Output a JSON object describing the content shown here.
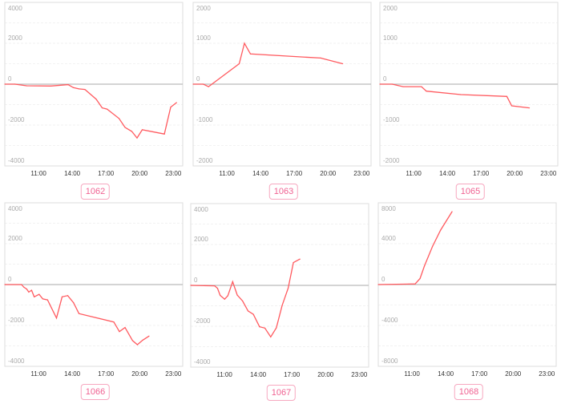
{
  "style": {
    "line_color": "#ff5a5f",
    "zero_line_color": "#bbbbbb",
    "grid_color": "#eeeeee",
    "frame_color": "#dddddd",
    "badge_color": "#f06292"
  },
  "chart_data": [
    {
      "type": "line",
      "label": "1062",
      "xlabel": "",
      "ylabel": "",
      "xlim": [
        "08:00",
        "23:50"
      ],
      "ylim": [
        -4000,
        4000
      ],
      "yticks": [
        -4000,
        -2000,
        0,
        2000,
        4000
      ],
      "xticks": [
        "11:00",
        "14:00",
        "17:00",
        "20:00",
        "23:00"
      ],
      "grid": true,
      "x": [
        "08:00",
        "08:54",
        "09:57",
        "12:06",
        "13:38",
        "14:06",
        "14:36",
        "15:08",
        "16:08",
        "16:40",
        "17:06",
        "18:10",
        "18:42",
        "19:18",
        "19:46",
        "20:14",
        "22:12",
        "22:46",
        "23:17"
      ],
      "y": [
        0,
        0,
        -80,
        -90,
        -25,
        -170,
        -230,
        -260,
        -735,
        -1160,
        -1220,
        -1680,
        -2115,
        -2310,
        -2630,
        -2230,
        -2440,
        -1120,
        -900
      ]
    },
    {
      "type": "line",
      "label": "1063",
      "xlabel": "",
      "ylabel": "",
      "xlim": [
        "08:00",
        "23:50"
      ],
      "ylim": [
        -2000,
        2000
      ],
      "yticks": [
        -2000,
        -1000,
        0,
        1000,
        2000
      ],
      "xticks": [
        "11:00",
        "14:00",
        "17:00",
        "20:00",
        "23:00"
      ],
      "grid": true,
      "x": [
        "08:00",
        "08:54",
        "09:22",
        "12:06",
        "12:34",
        "13:06",
        "19:21",
        "21:18"
      ],
      "y": [
        0,
        0,
        -60,
        500,
        1000,
        740,
        640,
        500
      ]
    },
    {
      "type": "line",
      "label": "1065",
      "xlabel": "",
      "ylabel": "",
      "xlim": [
        "08:00",
        "23:50"
      ],
      "ylim": [
        -2000,
        2000
      ],
      "yticks": [
        -2000,
        -1000,
        0,
        1000,
        2000
      ],
      "xticks": [
        "11:00",
        "14:00",
        "17:00",
        "20:00",
        "23:00"
      ],
      "grid": true,
      "x": [
        "08:00",
        "09:06",
        "10:04",
        "11:42",
        "12:08",
        "15:12",
        "19:18",
        "19:44",
        "21:18"
      ],
      "y": [
        0,
        0,
        -60,
        -60,
        -170,
        -255,
        -300,
        -530,
        -580
      ]
    },
    {
      "type": "line",
      "label": "1066",
      "xlabel": "",
      "ylabel": "",
      "xlim": [
        "08:00",
        "23:50"
      ],
      "ylim": [
        -4000,
        4000
      ],
      "yticks": [
        -4000,
        -2000,
        0,
        2000,
        4000
      ],
      "xticks": [
        "11:00",
        "14:00",
        "17:00",
        "20:00",
        "23:00"
      ],
      "grid": true,
      "x": [
        "08:00",
        "09:29",
        "09:42",
        "09:57",
        "10:08",
        "10:23",
        "10:37",
        "11:03",
        "11:23",
        "11:48",
        "12:36",
        "13:06",
        "13:36",
        "14:07",
        "14:36",
        "17:42",
        "18:12",
        "18:42",
        "19:22",
        "19:48",
        "20:16",
        "20:50"
      ],
      "y": [
        0,
        0,
        -130,
        -220,
        -370,
        -280,
        -600,
        -480,
        -700,
        -750,
        -1640,
        -600,
        -540,
        -890,
        -1420,
        -1830,
        -2300,
        -2100,
        -2740,
        -2940,
        -2720,
        -2520
      ]
    },
    {
      "type": "line",
      "label": "1067",
      "xlabel": "",
      "ylabel": "",
      "xlim": [
        "08:00",
        "23:50"
      ],
      "ylim": [
        -4000,
        4000
      ],
      "yticks": [
        -4000,
        -2000,
        0,
        2000,
        4000
      ],
      "xticks": [
        "11:00",
        "14:00",
        "17:00",
        "20:00",
        "23:00"
      ],
      "grid": true,
      "x": [
        "08:00",
        "10:08",
        "10:23",
        "10:37",
        "11:01",
        "11:18",
        "11:44",
        "12:08",
        "12:37",
        "13:06",
        "13:34",
        "14:07",
        "14:36",
        "15:07",
        "15:37",
        "16:08",
        "16:40",
        "17:08",
        "17:43"
      ],
      "y": [
        0,
        -25,
        -140,
        -490,
        -675,
        -505,
        180,
        -470,
        -765,
        -1250,
        -1415,
        -2025,
        -2090,
        -2520,
        -2080,
        -990,
        -145,
        1115,
        1285
      ]
    },
    {
      "type": "line",
      "label": "1068",
      "xlabel": "",
      "ylabel": "",
      "xlim": [
        "08:00",
        "23:50"
      ],
      "ylim": [
        -8000,
        8000
      ],
      "yticks": [
        -8000,
        -4000,
        0,
        4000,
        8000
      ],
      "xticks": [
        "11:00",
        "14:00",
        "17:00",
        "20:00",
        "23:00"
      ],
      "grid": true,
      "x": [
        "08:00",
        "11:17",
        "11:43",
        "12:07",
        "12:50",
        "13:33",
        "14:34"
      ],
      "y": [
        0,
        60,
        590,
        1840,
        3760,
        5330,
        7140
      ]
    }
  ]
}
